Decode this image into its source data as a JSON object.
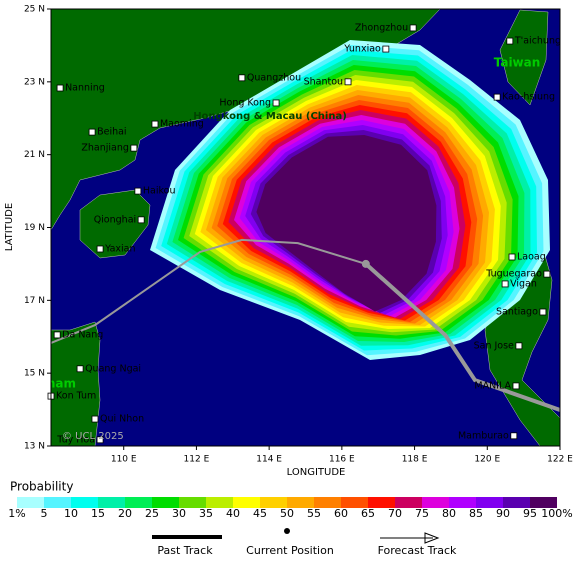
{
  "map": {
    "xlim": [
      108,
      122
    ],
    "ylim": [
      13,
      25
    ],
    "xticks": [
      {
        "value": 110,
        "label": "110 E"
      },
      {
        "value": 112,
        "label": "112 E"
      },
      {
        "value": 114,
        "label": "114 E"
      },
      {
        "value": 116,
        "label": "116 E"
      },
      {
        "value": 118,
        "label": "118 E"
      },
      {
        "value": 120,
        "label": "120 E"
      },
      {
        "value": 122,
        "label": "122 E"
      }
    ],
    "yticks": [
      {
        "value": 13,
        "label": "13 N"
      },
      {
        "value": 15,
        "label": "15 N"
      },
      {
        "value": 17,
        "label": "17 N"
      },
      {
        "value": 19,
        "label": "19 N"
      },
      {
        "value": 21,
        "label": "21 N"
      },
      {
        "value": 23,
        "label": "23 N"
      },
      {
        "value": 25,
        "label": "25 N"
      }
    ],
    "x_label": "LONGITUDE",
    "y_label": "LATITUDE",
    "places": [
      {
        "label": "Zhongzhou",
        "lon": 117.96,
        "lat": 24.48
      },
      {
        "label": "Yunxiao",
        "lon": 117.21,
        "lat": 23.9
      },
      {
        "label": "T'aichung",
        "lon": 120.62,
        "lat": 24.12
      },
      {
        "label": "Nanning",
        "lon": 108.25,
        "lat": 22.83
      },
      {
        "label": "Quangzhou",
        "lon": 113.25,
        "lat": 23.11
      },
      {
        "label": "Shantou",
        "lon": 116.17,
        "lat": 23.0
      },
      {
        "label": "Kao-hsiung",
        "lon": 120.27,
        "lat": 22.58
      },
      {
        "label": "Hong Kong",
        "lon": 114.19,
        "lat": 22.42
      },
      {
        "label": "Maoming",
        "lon": 110.86,
        "lat": 21.84
      },
      {
        "label": "Beihai",
        "lon": 109.13,
        "lat": 21.62
      },
      {
        "label": "Zhanjiang",
        "lon": 110.28,
        "lat": 21.18
      },
      {
        "label": "Haikou",
        "lon": 110.39,
        "lat": 20.0
      },
      {
        "label": "Qionghai",
        "lon": 110.48,
        "lat": 19.21
      },
      {
        "label": "Yaxian",
        "lon": 109.35,
        "lat": 18.41
      },
      {
        "label": "Laoag",
        "lon": 120.68,
        "lat": 18.19
      },
      {
        "label": "Tuguegarao",
        "lon": 121.64,
        "lat": 17.72
      },
      {
        "label": "Vigan",
        "lon": 120.49,
        "lat": 17.45
      },
      {
        "label": "Santiago",
        "lon": 121.53,
        "lat": 16.68
      },
      {
        "label": "San Jose",
        "lon": 120.87,
        "lat": 15.75
      },
      {
        "label": "Da Nang",
        "lon": 108.17,
        "lat": 16.05
      },
      {
        "label": "Quang Ngai",
        "lon": 108.8,
        "lat": 15.12
      },
      {
        "label": "Kon Tum",
        "lon": 108.0,
        "lat": 14.37
      },
      {
        "label": "Qui Nhon",
        "lon": 109.21,
        "lat": 13.74
      },
      {
        "label": "Tuy Hoa",
        "lon": 109.35,
        "lat": 13.17
      },
      {
        "label": "MANILA",
        "lon": 120.79,
        "lat": 14.65
      },
      {
        "label": "Mamburao",
        "lon": 120.73,
        "lat": 13.28
      }
    ],
    "region_labels": [
      "Taiwan",
      "Hongkong & Macau (China)",
      "Vietnam"
    ],
    "copyright": "© UCL 2025",
    "past_track": {
      "lon": [
        108.0,
        109.21,
        112.1,
        113.25,
        114.79,
        116.66
      ],
      "lat": [
        15.83,
        16.32,
        18.33,
        18.66,
        18.57,
        18.0
      ]
    },
    "current_position": {
      "lon": 116.66,
      "lat": 18.0
    },
    "forecast_track": {
      "lon": [
        116.66,
        118.84,
        119.66,
        122.0
      ],
      "lat": [
        18.0,
        16.05,
        14.81,
        13.99
      ]
    }
  },
  "legend": {
    "title": "Probability",
    "ticks": [
      {
        "value": 1,
        "label": "1%"
      },
      5,
      10,
      15,
      20,
      25,
      30,
      35,
      40,
      45,
      50,
      55,
      60,
      65,
      70,
      75,
      80,
      85,
      90,
      95,
      {
        "value": 100,
        "label": "100%"
      }
    ],
    "colors": [
      "#a8ffff",
      "#55f4ff",
      "#00ffee",
      "#00f0a8",
      "#00ee55",
      "#00dd00",
      "#66dd00",
      "#bbee00",
      "#ffff00",
      "#ffd000",
      "#ffaa00",
      "#ff8000",
      "#ff5000",
      "#ff1000",
      "#cc0060",
      "#dd00dd",
      "#b000ff",
      "#8000f0",
      "#5a00b0",
      "#500060"
    ],
    "past_track": "Past Track",
    "current_position": "Current Position",
    "forecast_track": "Forecast Track"
  }
}
